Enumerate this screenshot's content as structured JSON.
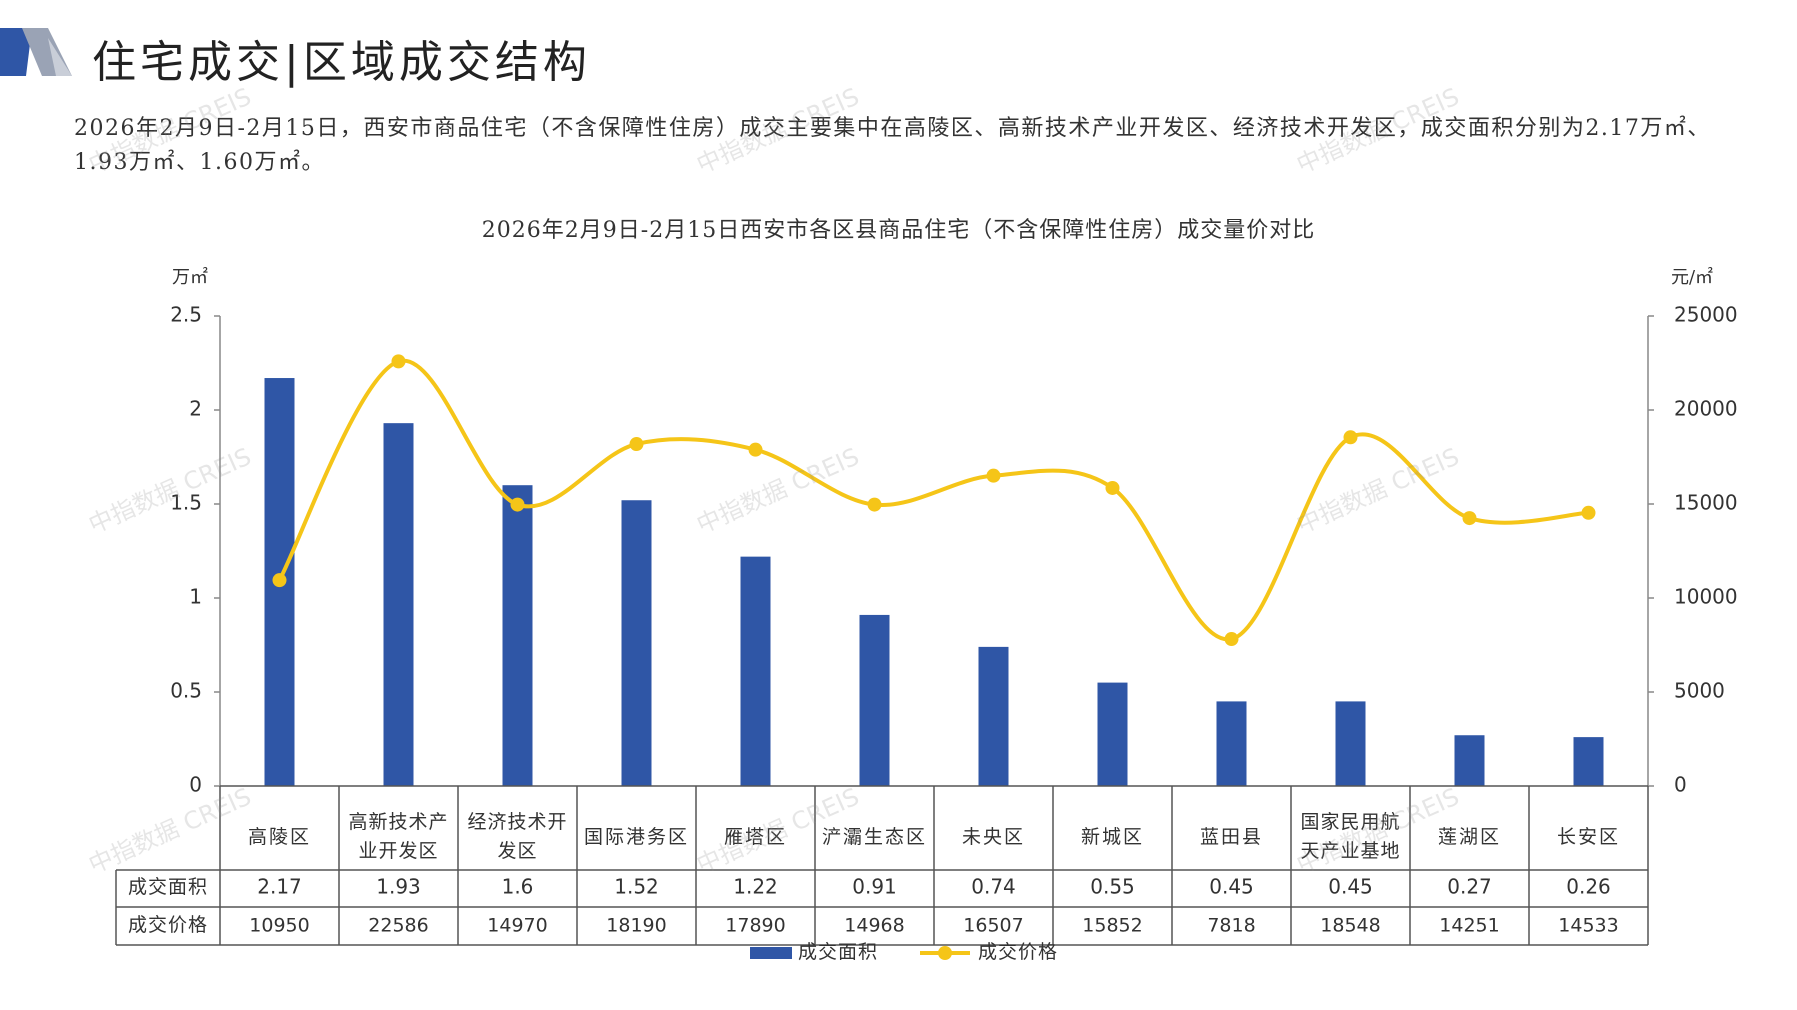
{
  "page_title": "住宅成交|区域成交结构",
  "summary": "2026年2月9日-2月15日，西安市商品住宅（不含保障性住房）成交主要集中在高陵区、高新技术产业开发区、经济技术开发区，成交面积分别为2.17万㎡、1.93万㎡、1.60万㎡。",
  "watermark": "中指数据 CREIS",
  "colors": {
    "bar": "#2f56a6",
    "line": "#f5c518",
    "axis": "#888888",
    "grid_text": "#333333"
  },
  "chart_data": {
    "type": "bar",
    "title": "2026年2月9日-2月15日西安市各区县商品住宅（不含保障性住房）成交量价对比",
    "categories": [
      [
        "高陵区"
      ],
      [
        "高新技术产",
        "业开发区"
      ],
      [
        "经济技术开",
        "发区"
      ],
      [
        "国际港务区"
      ],
      [
        "雁塔区"
      ],
      [
        "浐灞生态区"
      ],
      [
        "未央区"
      ],
      [
        "新城区"
      ],
      [
        "蓝田县"
      ],
      [
        "国家民用航",
        "天产业基地"
      ],
      [
        "莲湖区"
      ],
      [
        "长安区"
      ]
    ],
    "series": [
      {
        "name": "成交面积",
        "kind": "bar",
        "axis": "left",
        "values": [
          2.17,
          1.93,
          1.6,
          1.52,
          1.22,
          0.91,
          0.74,
          0.55,
          0.45,
          0.45,
          0.27,
          0.26
        ],
        "labels": [
          "2.17",
          "1.93",
          "1.6",
          "1.52",
          "1.22",
          "0.91",
          "0.74",
          "0.55",
          "0.45",
          "0.45",
          "0.27",
          "0.26"
        ]
      },
      {
        "name": "成交价格",
        "kind": "line",
        "axis": "right",
        "values": [
          10950,
          22586,
          14970,
          18190,
          17890,
          14968,
          16507,
          15852,
          7818,
          18548,
          14251,
          14533
        ],
        "labels": [
          "10950",
          "22586",
          "14970",
          "18190",
          "17890",
          "14968",
          "16507",
          "15852",
          "7818",
          "18548",
          "14251",
          "14533"
        ]
      }
    ],
    "y_left": {
      "unit": "万㎡",
      "min": 0,
      "max": 2.5,
      "ticks": [
        "0",
        "0.5",
        "1",
        "1.5",
        "2",
        "2.5"
      ]
    },
    "y_right": {
      "unit": "元/㎡",
      "min": 0,
      "max": 25000,
      "ticks": [
        "0",
        "5000",
        "10000",
        "15000",
        "20000",
        "25000"
      ]
    },
    "legend_position": "bottom"
  }
}
